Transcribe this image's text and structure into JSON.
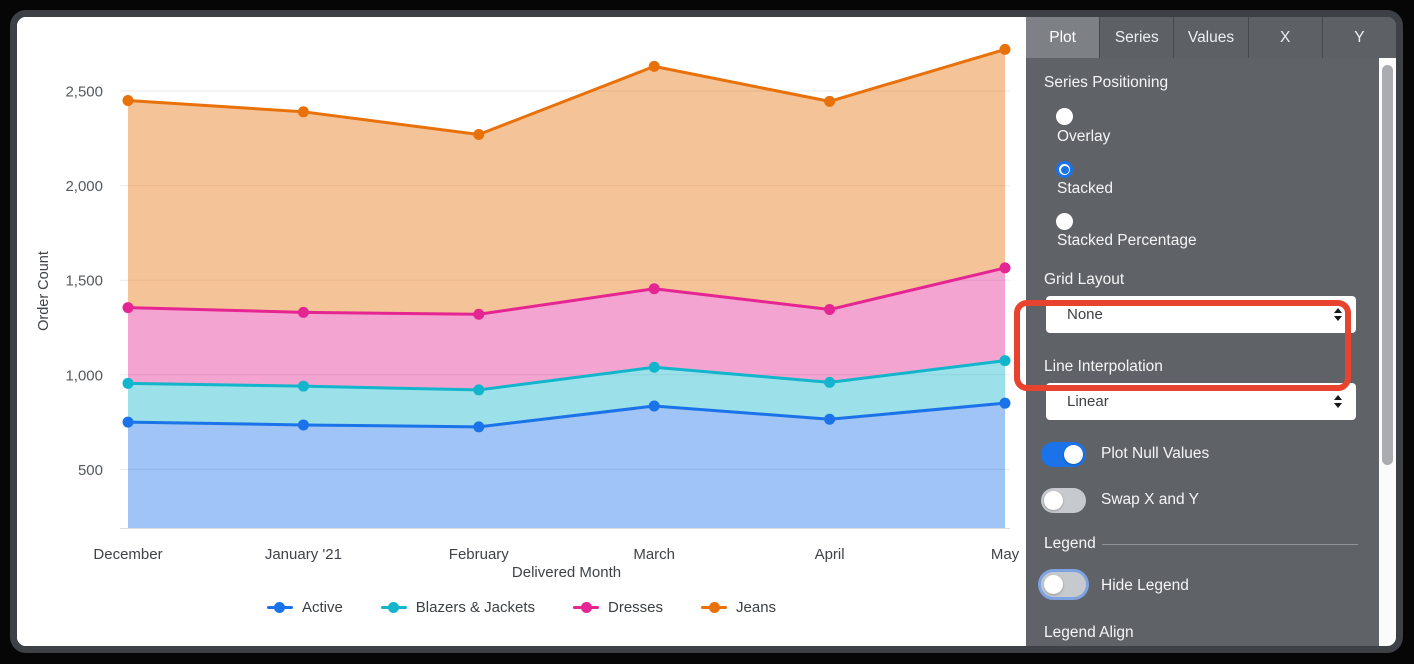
{
  "chart_data": {
    "type": "area",
    "stacked": true,
    "title": "",
    "xlabel": "Delivered Month",
    "ylabel": "Order Count",
    "x_categories": [
      "December",
      "January '21",
      "February",
      "March",
      "April",
      "May"
    ],
    "y_axis": {
      "tick_values": [
        500,
        1000,
        1500,
        2000,
        2500
      ],
      "tick_labels": [
        "500",
        "1,000",
        "1,500",
        "2,000",
        "2,500"
      ],
      "displayed_min": 190,
      "displayed_max": 2780,
      "grid": true
    },
    "legend_position": "bottom",
    "series": [
      {
        "name": "Active",
        "color": "#1a73e8",
        "values": [
          750,
          735,
          725,
          835,
          765,
          850
        ],
        "cumulative_totals": [
          750,
          735,
          725,
          835,
          765,
          850
        ]
      },
      {
        "name": "Blazers & Jackets",
        "color": "#12b5cb",
        "values": [
          205,
          205,
          195,
          205,
          195,
          225
        ],
        "cumulative_totals": [
          955,
          940,
          920,
          1040,
          960,
          1075
        ]
      },
      {
        "name": "Dresses",
        "color": "#e52592",
        "values": [
          400,
          390,
          400,
          415,
          385,
          490
        ],
        "cumulative_totals": [
          1355,
          1330,
          1320,
          1455,
          1345,
          1565
        ]
      },
      {
        "name": "Jeans",
        "color": "#e8710a",
        "values": [
          1095,
          1060,
          950,
          1175,
          1100,
          1155
        ],
        "cumulative_totals": [
          2450,
          2390,
          2270,
          2630,
          2445,
          2720
        ]
      }
    ]
  },
  "panel": {
    "tabs": [
      {
        "label": "Plot",
        "active": true
      },
      {
        "label": "Series",
        "active": false
      },
      {
        "label": "Values",
        "active": false
      },
      {
        "label": "X",
        "active": false
      },
      {
        "label": "Y",
        "active": false
      }
    ],
    "series_positioning": {
      "label": "Series Positioning",
      "options": [
        {
          "label": "Overlay",
          "selected": false
        },
        {
          "label": "Stacked",
          "selected": true
        },
        {
          "label": "Stacked Percentage",
          "selected": false
        }
      ]
    },
    "grid_layout": {
      "label": "Grid Layout",
      "value": "None"
    },
    "line_interpolation": {
      "label": "Line Interpolation",
      "value": "Linear"
    },
    "plot_null_values": {
      "label": "Plot Null Values",
      "on": true
    },
    "swap_x_y": {
      "label": "Swap X and Y",
      "on": false
    },
    "legend": {
      "header": "Legend",
      "hide_legend": {
        "label": "Hide Legend",
        "on": false
      },
      "legend_align": {
        "label": "Legend Align"
      }
    }
  },
  "annotation": {
    "type": "highlight-box",
    "target": "Grid Layout",
    "color": "#e8432e"
  }
}
